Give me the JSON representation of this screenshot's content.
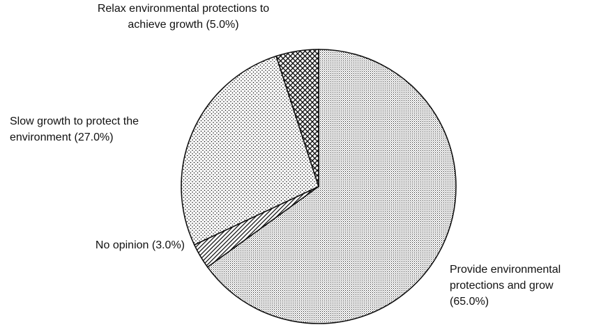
{
  "chart_data": {
    "type": "pie",
    "categories": [
      "Provide environmental protections and grow",
      "No opinion",
      "Slow growth to protect the environment",
      "Relax environmental protections to achieve growth"
    ],
    "values": [
      65,
      3,
      27,
      5
    ],
    "value_labels": [
      "(65.0%)",
      "(3.0%)",
      "(27.0%)",
      "(5.0%)"
    ]
  }
}
